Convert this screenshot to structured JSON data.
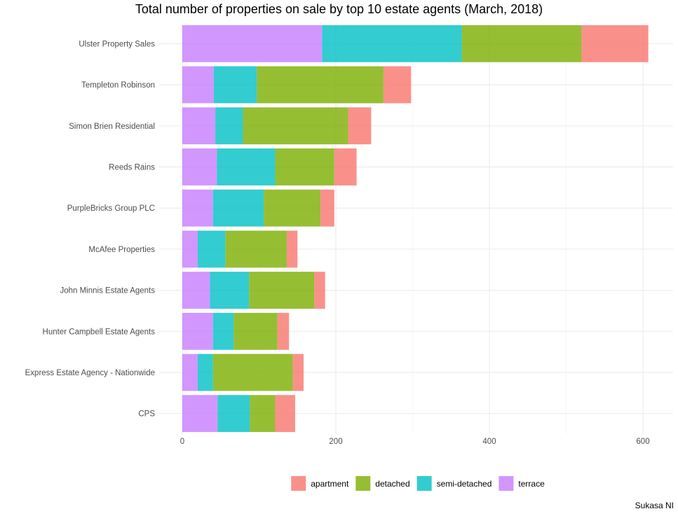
{
  "chart_data": {
    "type": "bar",
    "orientation": "horizontal",
    "stacked": true,
    "title": "Total number of properties on sale by top 10 estate agents (March, 2018)",
    "caption": "Sukasa NI",
    "xlabel": "",
    "ylabel": "",
    "xlim": [
      0,
      640
    ],
    "x_ticks": [
      0,
      200,
      400,
      600
    ],
    "grid": true,
    "legend_position": "bottom",
    "categories": [
      "Ulster Property Sales",
      "Templeton Robinson",
      "Simon Brien Residential",
      "Reeds Rains",
      "PurpleBricks Group PLC",
      "McAfee Properties",
      "John Minnis Estate Agents",
      "Hunter Campbell Estate Agents",
      "Express Estate Agency - Nationwide",
      "CPS"
    ],
    "series": [
      {
        "name": "terrace",
        "color": "#C77CFF",
        "values": [
          182,
          41,
          43,
          45,
          40,
          20,
          36,
          40,
          20,
          46
        ]
      },
      {
        "name": "semi-detached",
        "color": "#00BFC4",
        "values": [
          182,
          56,
          36,
          76,
          66,
          36,
          51,
          27,
          20,
          42
        ]
      },
      {
        "name": "detached",
        "color": "#7CAE00",
        "values": [
          156,
          165,
          137,
          77,
          74,
          80,
          85,
          57,
          104,
          33
        ]
      },
      {
        "name": "apartment",
        "color": "#F8766D",
        "values": [
          87,
          36,
          30,
          29,
          18,
          14,
          14,
          15,
          14,
          26
        ]
      }
    ],
    "legend_order": [
      "apartment",
      "detached",
      "semi-detached",
      "terrace"
    ]
  }
}
